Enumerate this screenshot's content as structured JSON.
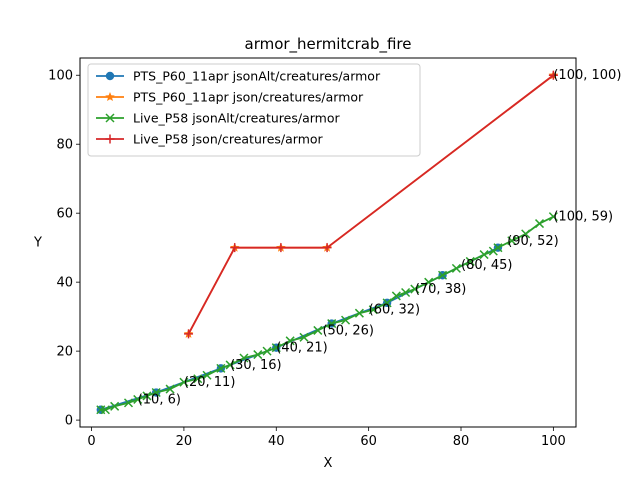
{
  "chart_data": {
    "type": "line",
    "title": "armor_hermitcrab_fire",
    "xlabel": "X",
    "ylabel": "Y",
    "xlim": [
      -2.5,
      104.9
    ],
    "ylim": [
      -2,
      105
    ],
    "xticks": [
      0,
      20,
      40,
      60,
      80,
      100
    ],
    "yticks": [
      0,
      20,
      40,
      60,
      80,
      100
    ],
    "legend_position": "upper-left",
    "series": [
      {
        "name": "PTS_P60_11apr jsonAlt/creatures/armor",
        "color": "#1f77b4",
        "marker": "circle",
        "x": [
          2,
          14,
          28,
          40,
          52,
          64,
          76,
          88
        ],
        "y": [
          3,
          8,
          15,
          21,
          28,
          34,
          42,
          50
        ]
      },
      {
        "name": "PTS_P60_11apr json/creatures/armor",
        "color": "#ff7f0e",
        "marker": "star",
        "x": [
          21,
          31,
          41,
          51,
          100
        ],
        "y": [
          25,
          50,
          50,
          50,
          100
        ]
      },
      {
        "name": "Live_P58 jsonAlt/creatures/armor",
        "color": "#2ca02c",
        "marker": "x",
        "x": [
          2,
          3,
          5,
          8,
          10,
          12,
          14,
          17,
          20,
          23,
          25,
          28,
          30,
          33,
          36,
          38,
          40,
          43,
          46,
          49,
          52,
          55,
          58,
          61,
          64,
          66,
          68,
          70,
          73,
          76,
          79,
          82,
          85,
          87,
          88,
          91,
          94,
          97,
          100
        ],
        "y": [
          3,
          3,
          4,
          5,
          6,
          7,
          8,
          9,
          11,
          12,
          13,
          15,
          16,
          18,
          19,
          20,
          21,
          23,
          24,
          26,
          28,
          29,
          31,
          32,
          34,
          36,
          37,
          38,
          40,
          42,
          44,
          46,
          48,
          49,
          50,
          52,
          54,
          57,
          59
        ]
      },
      {
        "name": "Live_P58 json/creatures/armor",
        "color": "#d62728",
        "marker": "plus",
        "x": [
          21,
          31,
          41,
          51,
          100
        ],
        "y": [
          25,
          50,
          50,
          50,
          100
        ]
      }
    ],
    "annotations": [
      {
        "text": "(10, 6)",
        "x": 10,
        "y": 6
      },
      {
        "text": "(20, 11)",
        "x": 20,
        "y": 11
      },
      {
        "text": "(30, 16)",
        "x": 30,
        "y": 16
      },
      {
        "text": "(40, 21)",
        "x": 40,
        "y": 21
      },
      {
        "text": "(50, 26)",
        "x": 50,
        "y": 26
      },
      {
        "text": "(60, 32)",
        "x": 60,
        "y": 32
      },
      {
        "text": "(70, 38)",
        "x": 70,
        "y": 38
      },
      {
        "text": "(80, 45)",
        "x": 80,
        "y": 45
      },
      {
        "text": "(90, 52)",
        "x": 90,
        "y": 52
      },
      {
        "text": "(100, 59)",
        "x": 100,
        "y": 59
      },
      {
        "text": "(100, 100)",
        "x": 100,
        "y": 100
      }
    ]
  }
}
